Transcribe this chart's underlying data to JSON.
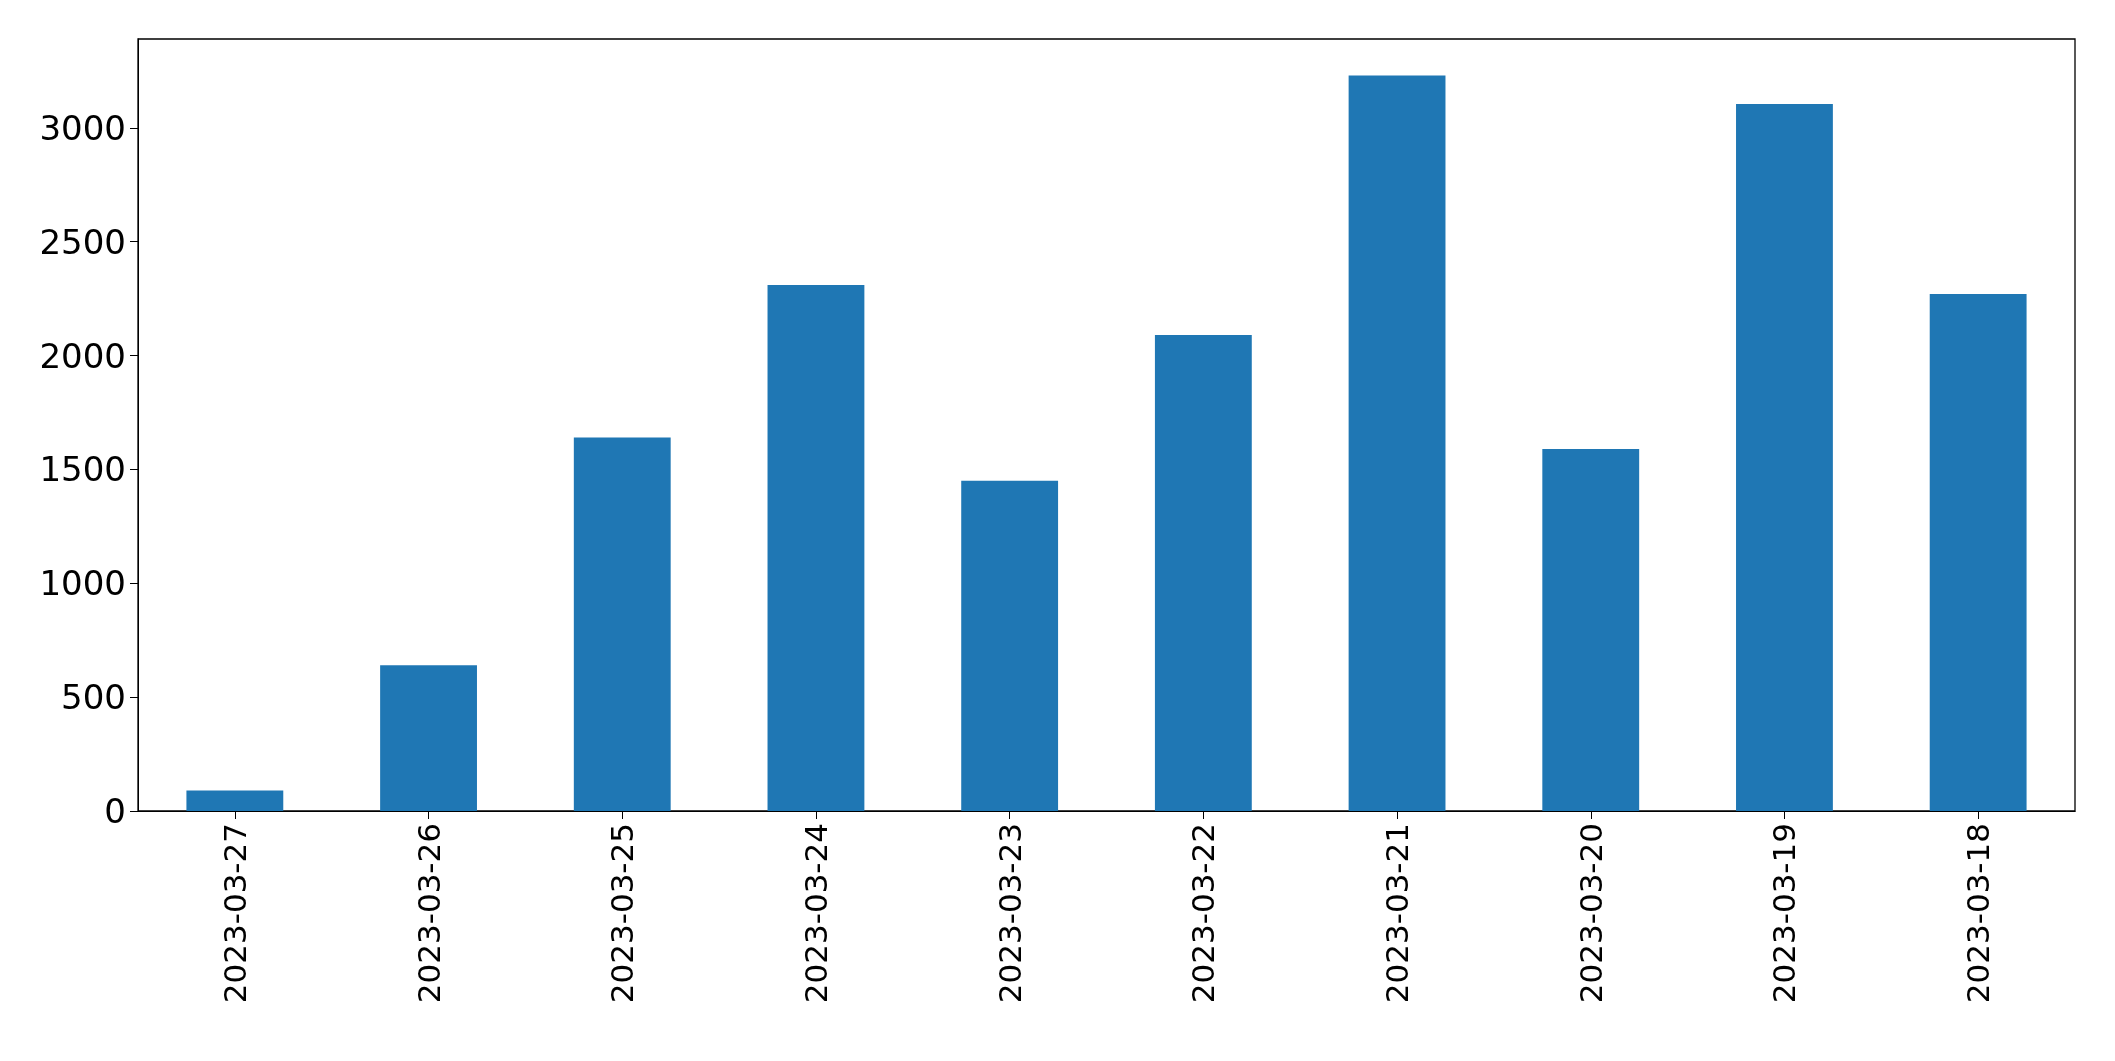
{
  "chart_data": {
    "type": "bar",
    "categories": [
      "2023-03-27",
      "2023-03-26",
      "2023-03-25",
      "2023-03-24",
      "2023-03-23",
      "2023-03-22",
      "2023-03-21",
      "2023-03-20",
      "2023-03-19",
      "2023-03-18"
    ],
    "values": [
      90,
      640,
      1640,
      2310,
      1450,
      2090,
      3230,
      1590,
      3105,
      2270
    ],
    "color": "#1f77b4",
    "ylim": [
      0,
      3390
    ],
    "yticks": [
      0,
      500,
      1000,
      1500,
      2000,
      2500,
      3000
    ],
    "grid": false
  }
}
